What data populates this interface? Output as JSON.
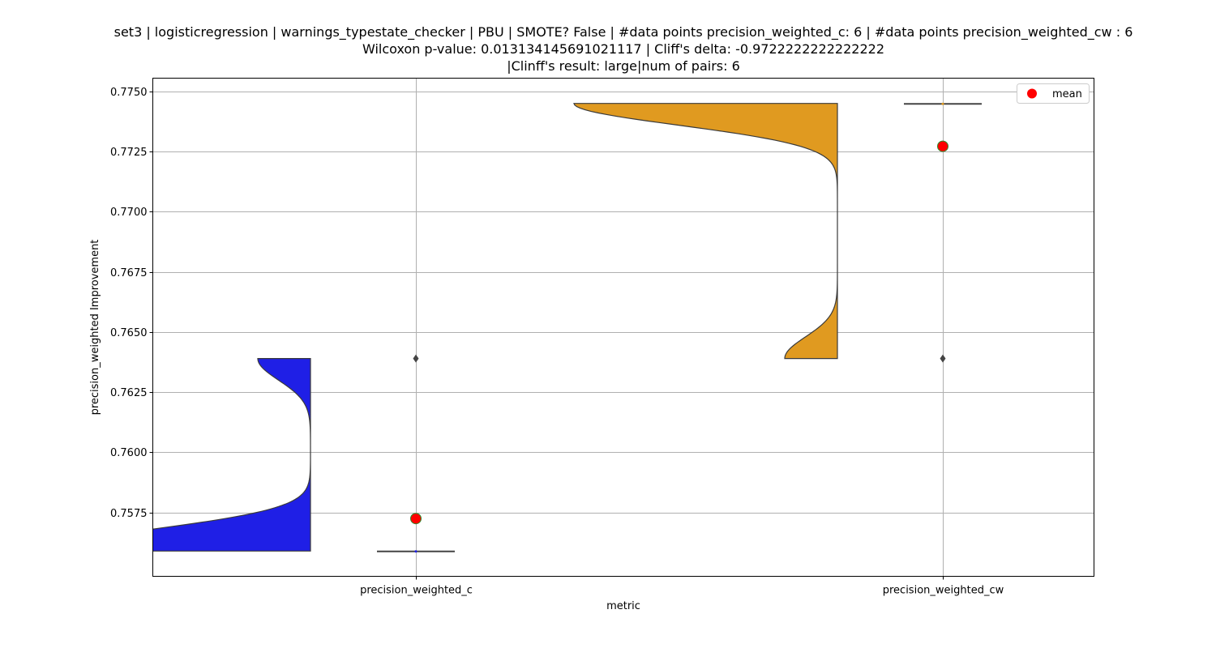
{
  "chart_data": {
    "type": "violin",
    "title_lines": [
      "set3 | logisticregression | warnings_typestate_checker | PBU | SMOTE? False | #data points precision_weighted_c: 6 | #data points precision_weighted_cw : 6",
      "Wilcoxon p-value: 0.013134145691021117 | Cliff's delta: -0.9722222222222222",
      "|Clinff's result: large|num of pairs: 6"
    ],
    "xlabel": "metric",
    "ylabel": "precision_weighted Improvement",
    "categories": [
      "precision_weighted_c",
      "precision_weighted_cw"
    ],
    "yticks": [
      "0.7575",
      "0.7600",
      "0.7625",
      "0.7650",
      "0.7675",
      "0.7700",
      "0.7725",
      "0.7750"
    ],
    "ylim": [
      0.75485,
      0.77555
    ],
    "grid": true,
    "legend": {
      "placement": "top-right",
      "entries": [
        {
          "label": "mean",
          "color": "#ff0000"
        }
      ]
    },
    "series": [
      {
        "category": "precision_weighted_c",
        "color": "#1f1fe6",
        "min": 0.7559,
        "max": 0.7639,
        "box": {
          "q1": 0.7559,
          "median": 0.7559,
          "q3": 0.7559,
          "whisker_low": 0.7559,
          "whisker_high": 0.7559
        },
        "outliers": [
          0.7639
        ],
        "mean": 0.75725
      },
      {
        "category": "precision_weighted_cw",
        "color": "#e09a20",
        "min": 0.7639,
        "max": 0.7745,
        "box": {
          "q1": 0.7745,
          "median": 0.7745,
          "q3": 0.7745,
          "whisker_low": 0.7745,
          "whisker_high": 0.7745
        },
        "outliers": [
          0.7639
        ],
        "mean": 0.77272
      }
    ]
  }
}
